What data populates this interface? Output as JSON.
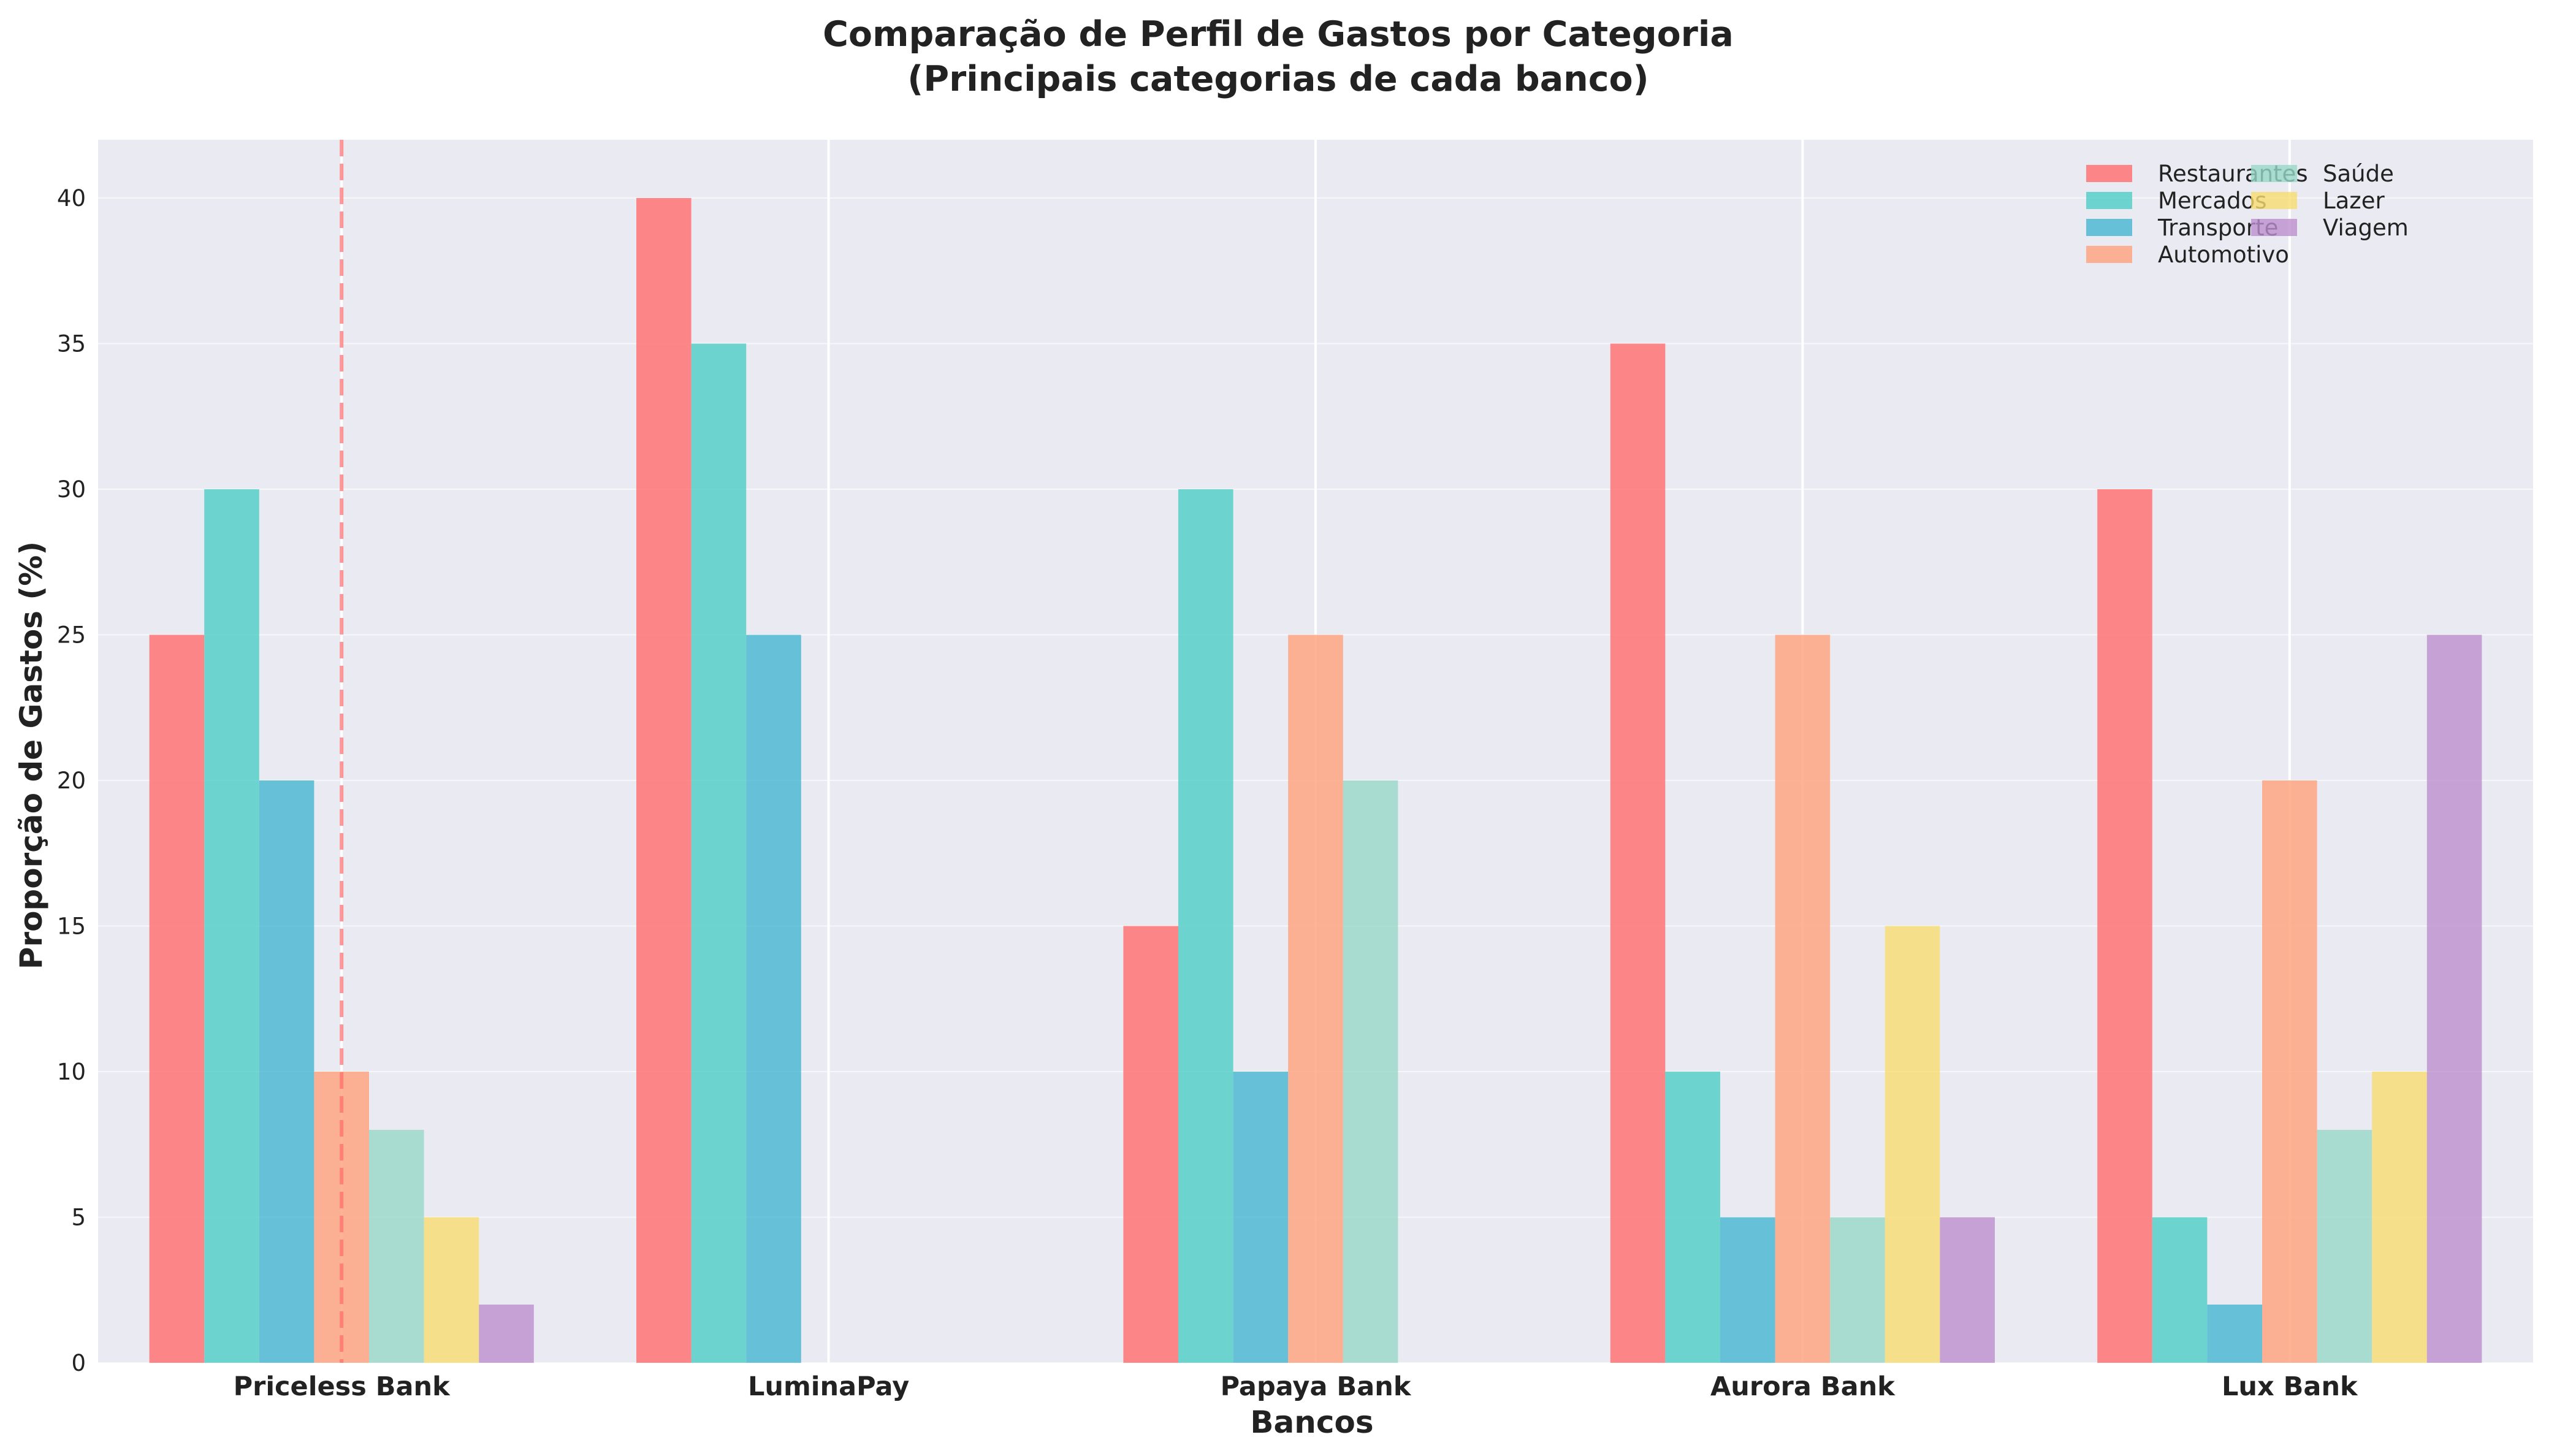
{
  "chart_data": {
    "type": "bar",
    "title_line1": "Comparação de Perfil de Gastos por Categoria",
    "title_line2": "(Principais categorias de cada banco)",
    "xlabel": "Bancos",
    "ylabel": "Proporção de Gastos (%)",
    "ylim": [
      0,
      42
    ],
    "yticks": [
      0,
      5,
      10,
      15,
      20,
      25,
      30,
      35,
      40
    ],
    "grid": true,
    "legend_position": "top-right",
    "categories": [
      "Priceless Bank",
      "LuminaPay",
      "Papaya Bank",
      "Aurora Bank",
      "Lux Bank"
    ],
    "series": [
      {
        "name": "Restaurantes",
        "color": "#FF6B6B",
        "values": [
          25,
          40,
          15,
          35,
          30
        ]
      },
      {
        "name": "Mercados",
        "color": "#4ECDC4",
        "values": [
          30,
          35,
          30,
          10,
          5
        ]
      },
      {
        "name": "Transporte",
        "color": "#45B7D1",
        "values": [
          20,
          25,
          10,
          5,
          2
        ]
      },
      {
        "name": "Automotivo",
        "color": "#FFA07A",
        "values": [
          10,
          0,
          25,
          25,
          20
        ]
      },
      {
        "name": "Saúde",
        "color": "#98D8C8",
        "values": [
          8,
          0,
          20,
          5,
          8
        ]
      },
      {
        "name": "Lazer",
        "color": "#F7DC6F",
        "values": [
          5,
          0,
          0,
          15,
          10
        ]
      },
      {
        "name": "Viagem",
        "color": "#BB8FCE",
        "values": [
          2,
          0,
          0,
          5,
          25
        ]
      }
    ],
    "reference_line": {
      "category": "Priceless Bank",
      "color": "#FF6B6B",
      "style": "dashed"
    },
    "plot_background": "#EAEAF2",
    "gridline_color": "#FFFFFF"
  }
}
